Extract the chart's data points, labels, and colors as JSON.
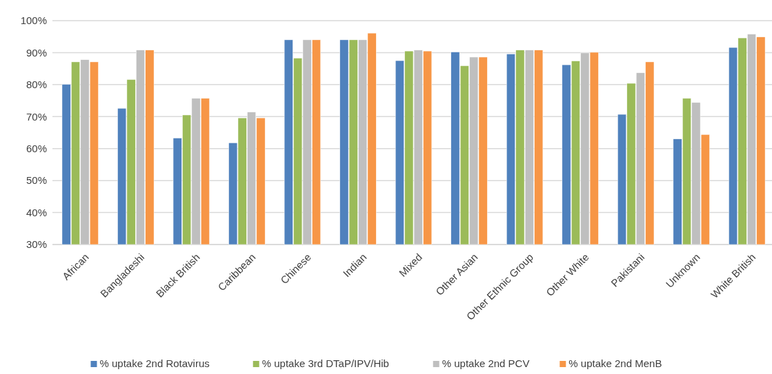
{
  "chart_data": {
    "type": "bar",
    "categories": [
      "African",
      "Bangladeshi",
      "Black British",
      "Caribbean",
      "Chinese",
      "Indian",
      "Mixed",
      "Other Asian",
      "Other Ethnic Group",
      "Other White",
      "Pakistani",
      "Unknown",
      "White British"
    ],
    "series": [
      {
        "name": "% uptake 2nd Rotavirus",
        "color": "#4f81bd",
        "values": [
          80.1,
          72.6,
          63.3,
          61.8,
          94.0,
          94.0,
          87.5,
          90.2,
          89.6,
          86.2,
          70.7,
          63.0,
          91.6
        ]
      },
      {
        "name": "% uptake 3rd DTaP/IPV/Hib",
        "color": "#9bbb59",
        "values": [
          87.1,
          81.6,
          70.5,
          69.6,
          88.3,
          94.0,
          90.5,
          85.9,
          90.8,
          87.4,
          80.4,
          75.7,
          94.6
        ]
      },
      {
        "name": "% uptake 2nd PCV",
        "color": "#bfbfbf",
        "values": [
          87.8,
          90.8,
          75.7,
          71.4,
          94.0,
          94.0,
          90.8,
          88.6,
          90.8,
          89.9,
          83.7,
          74.4,
          95.8
        ]
      },
      {
        "name": "% uptake 2nd MenB",
        "color": "#f79646",
        "values": [
          87.1,
          90.8,
          75.7,
          69.6,
          94.0,
          96.1,
          90.5,
          88.6,
          90.8,
          90.1,
          87.1,
          64.4,
          94.9
        ]
      }
    ],
    "ylim": [
      30,
      100
    ],
    "yticks": [
      {
        "value": 30,
        "label": "30%"
      },
      {
        "value": 40,
        "label": "40%"
      },
      {
        "value": 50,
        "label": "50%"
      },
      {
        "value": 60,
        "label": "60%"
      },
      {
        "value": 70,
        "label": "70%"
      },
      {
        "value": 80,
        "label": "80%"
      },
      {
        "value": 90,
        "label": "90%"
      },
      {
        "value": 100,
        "label": "100%"
      }
    ],
    "grid": "y",
    "legend": "bottom"
  }
}
